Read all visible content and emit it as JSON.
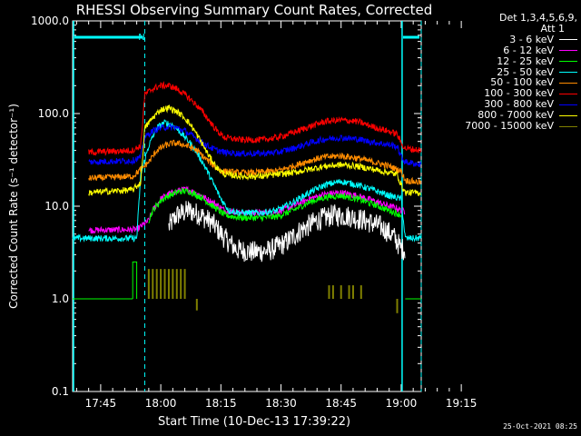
{
  "chart_data": {
    "type": "line",
    "title": "RHESSI Observing Summary Count Rates, Corrected",
    "xlabel": "Start Time (10-Dec-13 17:39:22)",
    "ylabel": "Corrected Count Rate (s⁻¹ detector⁻¹)",
    "yscale": "log",
    "ylim": [
      0.1,
      1000
    ],
    "y_ticks": [
      "0.1",
      "1.0",
      "10.0",
      "100.0",
      "1000.0"
    ],
    "xlim_min": [
      -7,
      80
    ],
    "x_ticks": [
      {
        "min": 0,
        "label": "17:45"
      },
      {
        "min": 15,
        "label": "18:00"
      },
      {
        "min": 30,
        "label": "18:15"
      },
      {
        "min": 45,
        "label": "18:30"
      },
      {
        "min": 60,
        "label": "18:45"
      },
      {
        "min": 75,
        "label": "19:00"
      },
      {
        "min": 90,
        "label": "19:15"
      }
    ],
    "series": [
      {
        "name": "3 - 6 keV",
        "color": "#ffffff",
        "noise": 0.12,
        "points": [
          [
            17,
            6
          ],
          [
            19,
            8
          ],
          [
            22,
            9
          ],
          [
            25,
            8
          ],
          [
            28,
            6.5
          ],
          [
            31,
            4.5
          ],
          [
            34,
            3.4
          ],
          [
            38,
            3.2
          ],
          [
            42,
            3.3
          ],
          [
            46,
            4
          ],
          [
            50,
            5.5
          ],
          [
            54,
            7
          ],
          [
            58,
            8
          ],
          [
            62,
            7.8
          ],
          [
            66,
            7
          ],
          [
            70,
            6
          ],
          [
            73,
            4.8
          ],
          [
            75,
            3.5
          ],
          [
            76,
            3.4
          ]
        ]
      },
      {
        "name": "6 - 12 keV",
        "color": "#ff00ff",
        "points": [
          [
            -3,
            5.5
          ],
          [
            9,
            5.6
          ],
          [
            12,
            7
          ],
          [
            13,
            9
          ],
          [
            15,
            12
          ],
          [
            17,
            13.5
          ],
          [
            20,
            15
          ],
          [
            22,
            15
          ],
          [
            25,
            13
          ],
          [
            28,
            11
          ],
          [
            31,
            9
          ],
          [
            35,
            8.5
          ],
          [
            40,
            8.5
          ],
          [
            44,
            8.7
          ],
          [
            48,
            10
          ],
          [
            52,
            12
          ],
          [
            56,
            13.5
          ],
          [
            60,
            14
          ],
          [
            64,
            13
          ],
          [
            68,
            11.5
          ],
          [
            72,
            10
          ],
          [
            74,
            9.5
          ],
          [
            75,
            9
          ],
          [
            76,
            8.8
          ]
        ]
      },
      {
        "name": "12 - 25 keV",
        "color": "#00ff00",
        "points": [
          [
            12,
            7
          ],
          [
            13,
            9
          ],
          [
            15,
            11.5
          ],
          [
            17,
            13
          ],
          [
            20,
            14.5
          ],
          [
            22,
            14.5
          ],
          [
            25,
            12.5
          ],
          [
            28,
            10
          ],
          [
            31,
            8
          ],
          [
            35,
            7.5
          ],
          [
            40,
            7.5
          ],
          [
            44,
            7.7
          ],
          [
            48,
            9
          ],
          [
            52,
            11
          ],
          [
            56,
            12.5
          ],
          [
            60,
            13
          ],
          [
            64,
            12
          ],
          [
            68,
            10.5
          ],
          [
            72,
            9
          ],
          [
            75,
            8
          ]
        ]
      },
      {
        "name": "25 - 50 keV",
        "color": "#00ffff",
        "points": [
          [
            -7,
            4.5
          ],
          [
            9,
            4.5
          ],
          [
            10,
            22
          ],
          [
            12,
            45
          ],
          [
            14,
            70
          ],
          [
            16,
            80
          ],
          [
            18,
            75
          ],
          [
            20,
            62
          ],
          [
            22,
            50
          ],
          [
            24,
            38
          ],
          [
            26,
            27
          ],
          [
            28,
            18
          ],
          [
            30,
            12
          ],
          [
            32,
            9
          ],
          [
            35,
            8.5
          ],
          [
            40,
            8.5
          ],
          [
            44,
            9
          ],
          [
            48,
            11
          ],
          [
            52,
            14
          ],
          [
            56,
            17
          ],
          [
            60,
            18.5
          ],
          [
            64,
            17
          ],
          [
            68,
            15
          ],
          [
            72,
            13
          ],
          [
            75,
            12
          ],
          [
            76,
            4.5
          ],
          [
            80,
            4.5
          ]
        ]
      },
      {
        "name": "50 - 100 keV",
        "color": "#ff8c00",
        "points": [
          [
            -3,
            20
          ],
          [
            8,
            21
          ],
          [
            10,
            25
          ],
          [
            12,
            30
          ],
          [
            14,
            40
          ],
          [
            16,
            45
          ],
          [
            18,
            48
          ],
          [
            20,
            47
          ],
          [
            22,
            44
          ],
          [
            24,
            40
          ],
          [
            26,
            33
          ],
          [
            28,
            28
          ],
          [
            30,
            24
          ],
          [
            34,
            23
          ],
          [
            38,
            23
          ],
          [
            44,
            24
          ],
          [
            48,
            27
          ],
          [
            52,
            31
          ],
          [
            56,
            34
          ],
          [
            60,
            35
          ],
          [
            64,
            33
          ],
          [
            68,
            30
          ],
          [
            72,
            27
          ],
          [
            75,
            24
          ],
          [
            76,
            19
          ],
          [
            80,
            18
          ]
        ]
      },
      {
        "name": "100 - 300 keV",
        "color": "#ff0000",
        "points": [
          [
            -3,
            38
          ],
          [
            8,
            40
          ],
          [
            10,
            45
          ],
          [
            11,
            160
          ],
          [
            13,
            185
          ],
          [
            15,
            200
          ],
          [
            17,
            200
          ],
          [
            19,
            185
          ],
          [
            21,
            160
          ],
          [
            23,
            135
          ],
          [
            25,
            110
          ],
          [
            27,
            85
          ],
          [
            29,
            65
          ],
          [
            31,
            55
          ],
          [
            35,
            52
          ],
          [
            40,
            52
          ],
          [
            44,
            55
          ],
          [
            48,
            62
          ],
          [
            52,
            72
          ],
          [
            56,
            82
          ],
          [
            60,
            85
          ],
          [
            64,
            82
          ],
          [
            68,
            72
          ],
          [
            72,
            64
          ],
          [
            74,
            60
          ],
          [
            75,
            48
          ],
          [
            76,
            42
          ],
          [
            80,
            40
          ]
        ]
      },
      {
        "name": "300 - 800 keV",
        "color": "#0000ff",
        "points": [
          [
            -3,
            30
          ],
          [
            8,
            31
          ],
          [
            10,
            34
          ],
          [
            11,
            55
          ],
          [
            13,
            65
          ],
          [
            15,
            70
          ],
          [
            17,
            72
          ],
          [
            19,
            70
          ],
          [
            21,
            65
          ],
          [
            23,
            57
          ],
          [
            25,
            50
          ],
          [
            27,
            44
          ],
          [
            29,
            40
          ],
          [
            31,
            38
          ],
          [
            35,
            37
          ],
          [
            40,
            37
          ],
          [
            44,
            38
          ],
          [
            48,
            42
          ],
          [
            52,
            48
          ],
          [
            56,
            53
          ],
          [
            60,
            55
          ],
          [
            64,
            53
          ],
          [
            68,
            49
          ],
          [
            72,
            46
          ],
          [
            74,
            44
          ],
          [
            75,
            34
          ],
          [
            76,
            30
          ],
          [
            80,
            28
          ]
        ]
      },
      {
        "name": "800 - 7000 keV",
        "color": "#ffff00",
        "points": [
          [
            -3,
            14
          ],
          [
            8,
            15
          ],
          [
            10,
            18
          ],
          [
            11,
            70
          ],
          [
            13,
            90
          ],
          [
            15,
            110
          ],
          [
            17,
            115
          ],
          [
            19,
            105
          ],
          [
            21,
            90
          ],
          [
            23,
            70
          ],
          [
            25,
            50
          ],
          [
            27,
            35
          ],
          [
            29,
            26
          ],
          [
            31,
            22
          ],
          [
            35,
            21
          ],
          [
            40,
            21
          ],
          [
            44,
            22
          ],
          [
            48,
            23
          ],
          [
            52,
            25
          ],
          [
            56,
            27
          ],
          [
            60,
            28
          ],
          [
            64,
            27
          ],
          [
            68,
            25
          ],
          [
            72,
            23
          ],
          [
            74,
            22
          ],
          [
            75,
            17
          ],
          [
            76,
            14
          ],
          [
            80,
            14
          ]
        ]
      },
      {
        "name": "7000 - 15000 keV",
        "color": "#808000",
        "mode": "marks",
        "points": [
          [
            12,
            2.1
          ],
          [
            13,
            2.1
          ],
          [
            14,
            2.1
          ],
          [
            15,
            2.1
          ],
          [
            16,
            2.1
          ],
          [
            17,
            2.1
          ],
          [
            18,
            2.1
          ],
          [
            19,
            2.1
          ],
          [
            20,
            2.1
          ],
          [
            21,
            2.1
          ],
          [
            24,
            0.75
          ],
          [
            57,
            1.4
          ],
          [
            58,
            1.4
          ],
          [
            60,
            1.4
          ],
          [
            62,
            1.4
          ],
          [
            63,
            1.4
          ],
          [
            65,
            1.4
          ],
          [
            74,
            0.7
          ]
        ]
      }
    ],
    "flat_segment": {
      "color": "#00ff00",
      "value": 1.0,
      "ranges": [
        [
          -7,
          8
        ],
        [
          76,
          80
        ]
      ],
      "points": [
        [
          8,
          1.0
        ],
        [
          8,
          2.5
        ],
        [
          9,
          2.5
        ],
        [
          9,
          1.0
        ]
      ]
    },
    "solid_vlines_min": [
      -7,
      75
    ],
    "dashed_vlines_min": [
      11,
      80
    ],
    "top_bars": [
      [
        -7,
        11
      ],
      [
        75,
        80
      ]
    ],
    "top_marker": "N",
    "guide_color": "#00ffff"
  },
  "legend": {
    "header_line1": "Det 1,3,4,5,6,9,",
    "header_line2": "Att 1"
  },
  "timestamp": "25-Oct-2021 08:25"
}
